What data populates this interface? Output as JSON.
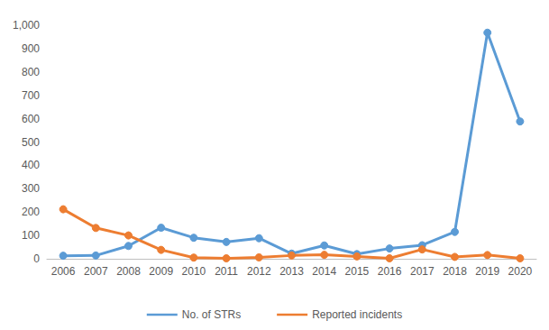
{
  "chart_data": {
    "type": "line",
    "categories": [
      "2006",
      "2007",
      "2008",
      "2009",
      "2010",
      "2011",
      "2012",
      "2013",
      "2014",
      "2015",
      "2016",
      "2017",
      "2018",
      "2019",
      "2020"
    ],
    "series": [
      {
        "name": "No. of STRs",
        "color": "#5b9bd5",
        "marker": "circle",
        "values": [
          13,
          14,
          55,
          133,
          90,
          72,
          88,
          22,
          57,
          20,
          44,
          58,
          115,
          968,
          588
        ]
      },
      {
        "name": "Reported incidents",
        "color": "#ed7d31",
        "marker": "circle",
        "values": [
          212,
          132,
          100,
          38,
          5,
          2,
          6,
          14,
          17,
          10,
          2,
          40,
          8,
          16,
          2
        ]
      }
    ],
    "ylim": [
      0,
      1000
    ],
    "yticks": [
      0,
      100,
      200,
      300,
      400,
      500,
      600,
      700,
      800,
      900,
      1000
    ],
    "grid": false,
    "legend": "bottom"
  }
}
